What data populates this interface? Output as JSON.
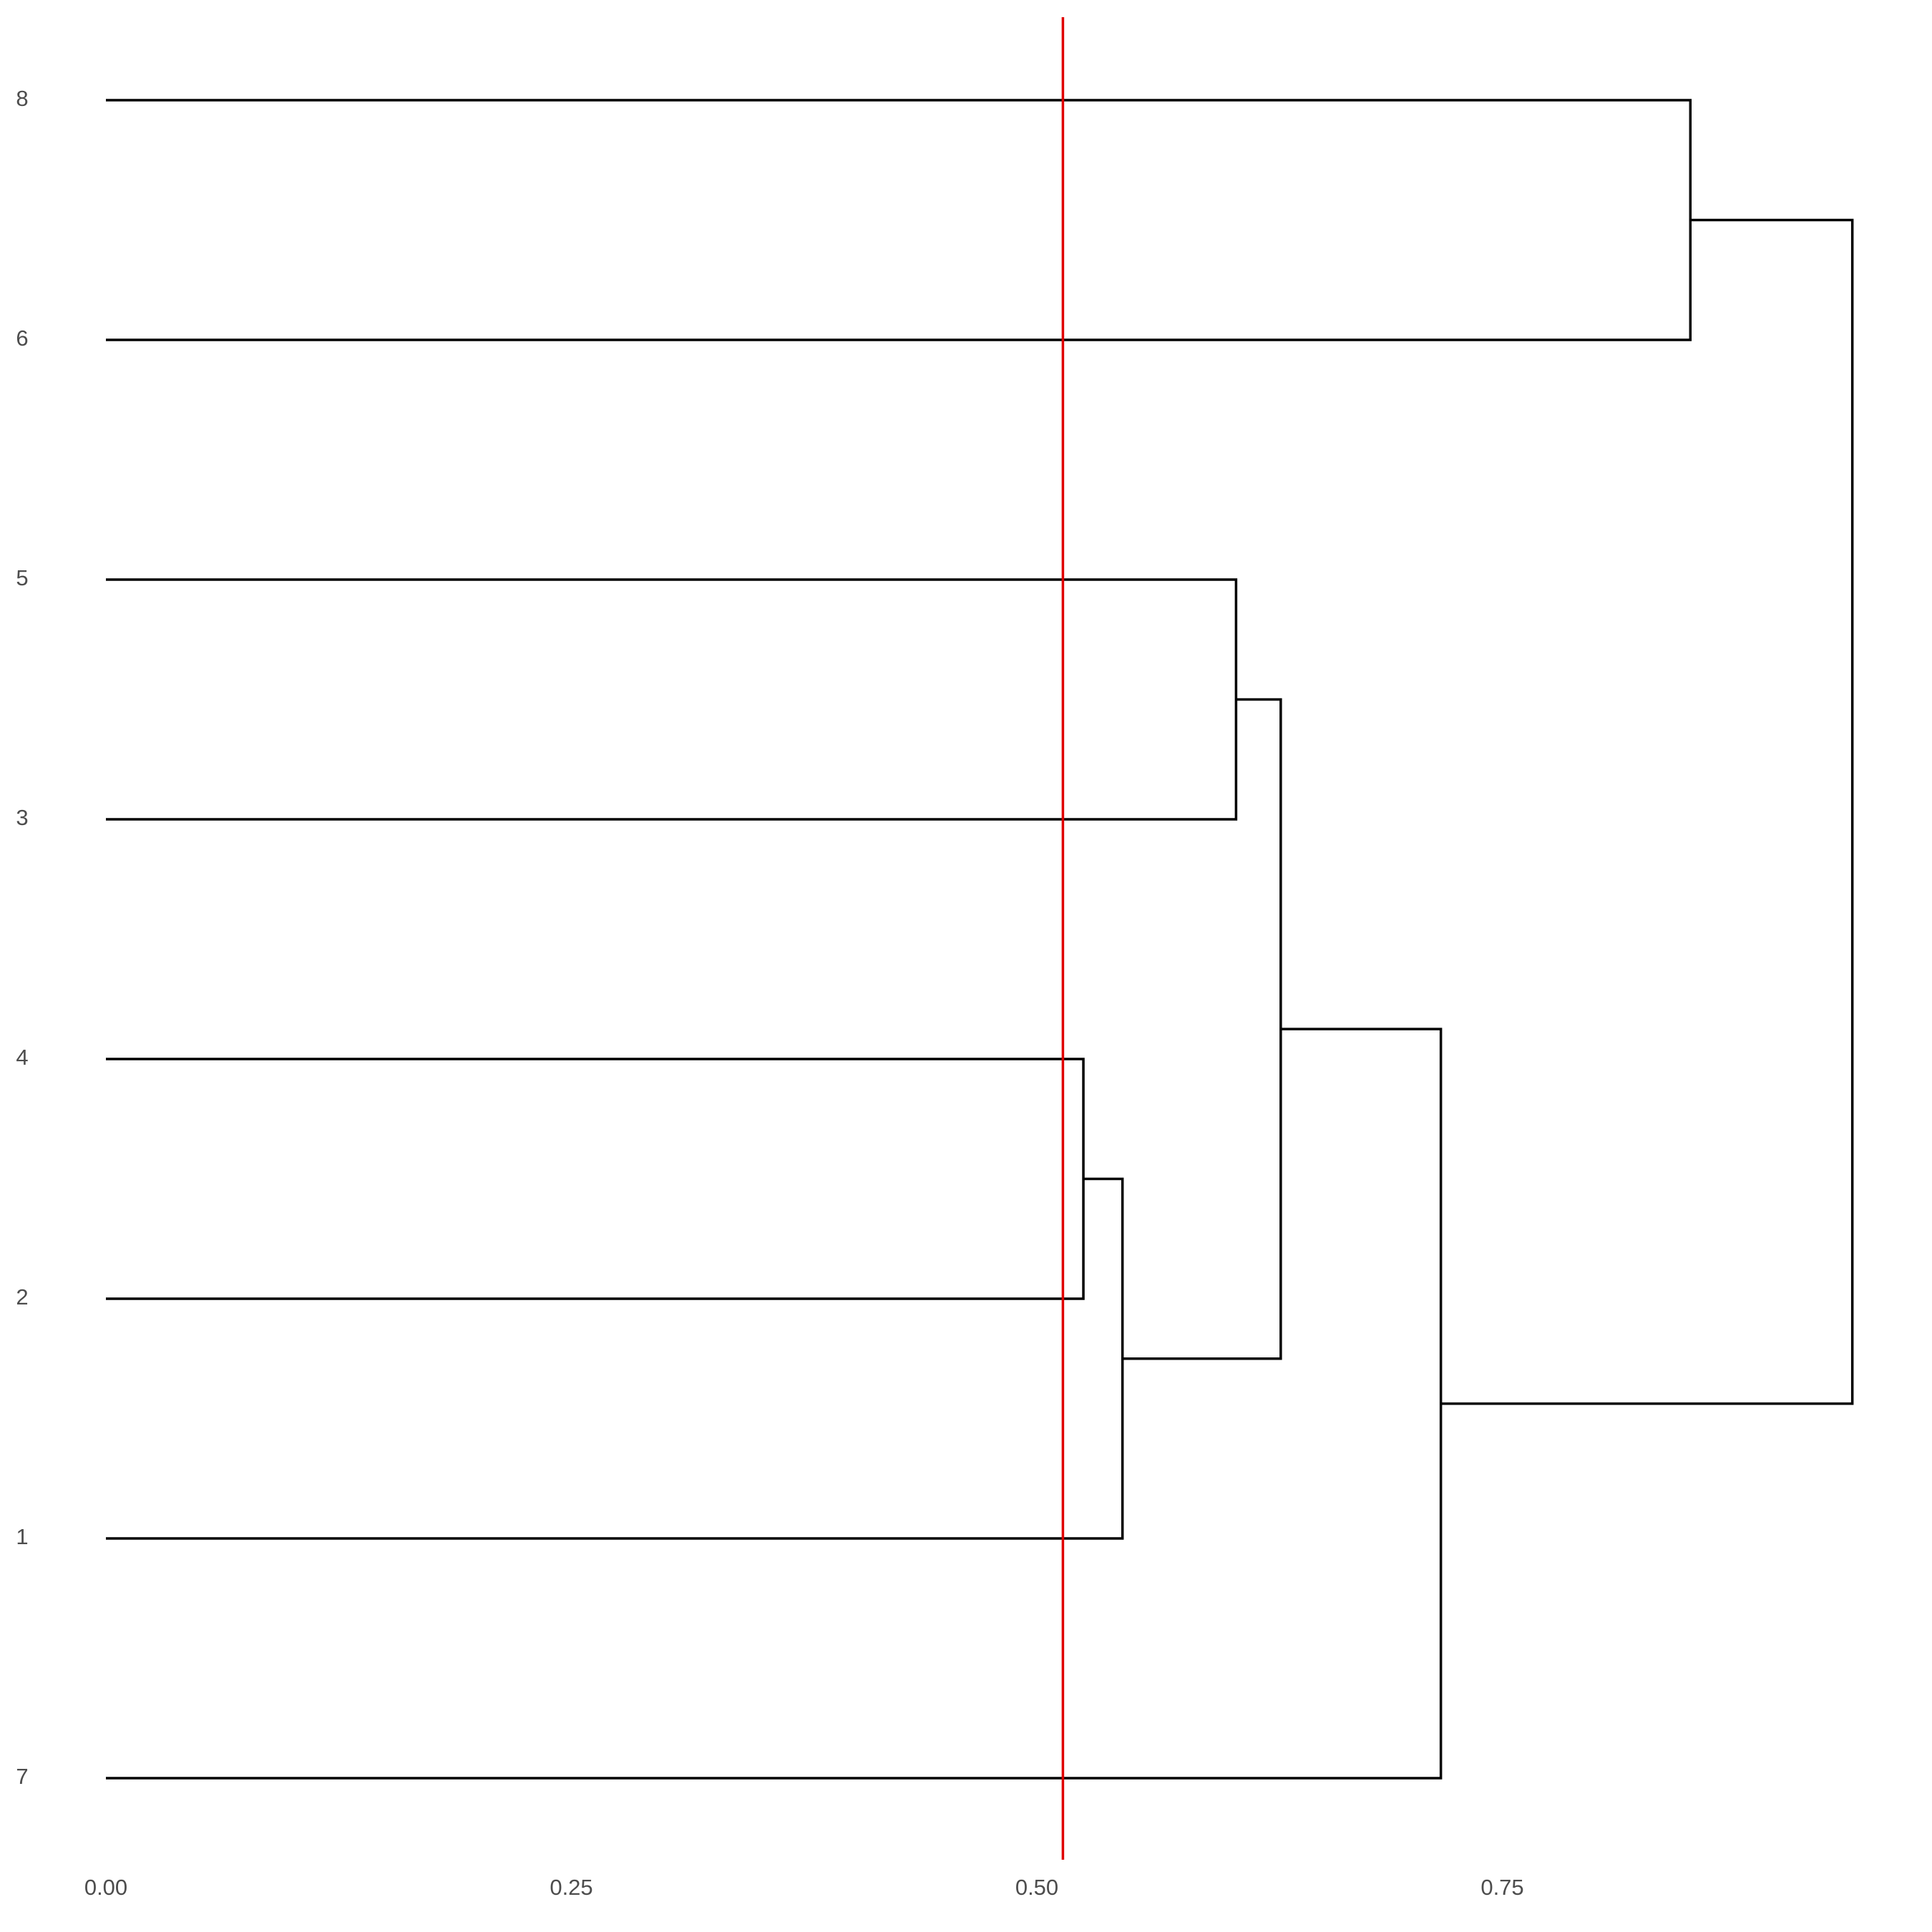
{
  "chart_data": {
    "type": "dendrogram",
    "labels": [
      "8",
      "6",
      "5",
      "3",
      "4",
      "2",
      "1",
      "7"
    ],
    "merges": [
      {
        "left": 4,
        "right": 5,
        "height": 0.525
      },
      {
        "left": 8,
        "right": 6,
        "height": 0.546
      },
      {
        "left": 2,
        "right": 3,
        "height": 0.607
      },
      {
        "left": 10,
        "right": 9,
        "height": 0.631
      },
      {
        "left": 11,
        "right": 7,
        "height": 0.717
      },
      {
        "left": 0,
        "right": 1,
        "height": 0.851
      },
      {
        "left": 13,
        "right": 12,
        "height": 0.938
      }
    ],
    "cut_height": 0.514,
    "cut_color": "#e00000",
    "color": "#000000",
    "xlim": [
      0,
      0.96
    ],
    "xticks": [
      {
        "value": 0,
        "label": "0.00"
      },
      0.25,
      {
        "value": 0.5,
        "label": "0.50"
      },
      0.75
    ]
  }
}
